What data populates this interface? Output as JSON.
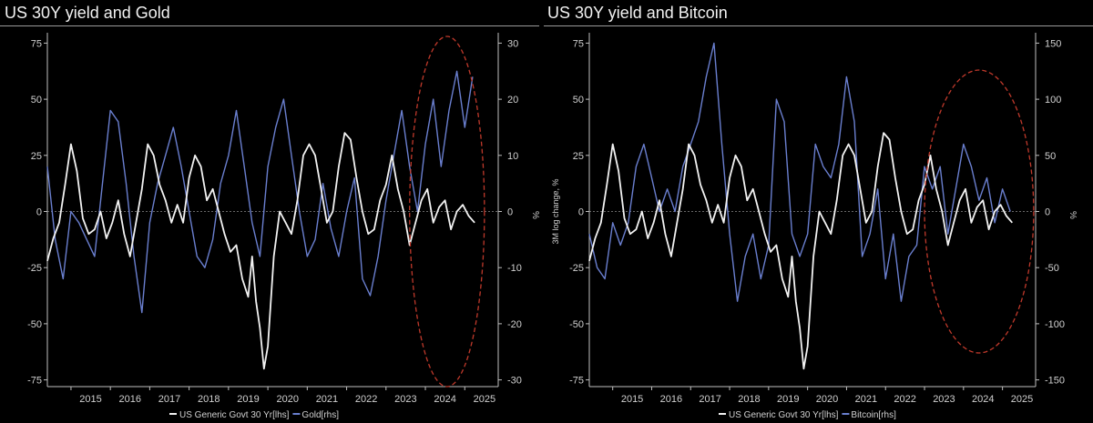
{
  "colors": {
    "background": "#000000",
    "yield_line": "#f2f2f2",
    "asset_line": "#6a7fcf",
    "highlight_ellipse": "#c0392b",
    "axis": "#bfbfbf",
    "zero_line": "#8a8a8a"
  },
  "chart_data": [
    {
      "type": "line",
      "title": "US 30Y yield and Gold",
      "ylabel_left": "",
      "ylabel_right": "%",
      "ylim_left": [
        -78,
        78
      ],
      "ylim_right": [
        -31.2,
        31.2
      ],
      "yticks_left": [
        75,
        50,
        25,
        0,
        -25,
        -50,
        -75
      ],
      "yticks_right": [
        30,
        20,
        10,
        0,
        -10,
        -20,
        -30
      ],
      "xlim": [
        2014.4,
        2025.85
      ],
      "xticks": [
        "2015",
        "2016",
        "2017",
        "2018",
        "2019",
        "2020",
        "2021",
        "2022",
        "2023",
        "2024",
        "2025"
      ],
      "grid": false,
      "zero_line": true,
      "highlight": {
        "x_center": 2024.55,
        "y_center": 0,
        "x_radius": 0.95,
        "y_radius": 78
      },
      "legend": {
        "position": "bottom-center",
        "series_1": "US Generic Govt 30 Yr[lhs]",
        "series_2": "Gold[rhs]"
      },
      "series": [
        {
          "name": "US Generic Govt 30 Yr[lhs]",
          "axis": "left",
          "x": [
            2014.4,
            2014.55,
            2014.7,
            2014.85,
            2015.0,
            2015.15,
            2015.3,
            2015.45,
            2015.6,
            2015.75,
            2015.9,
            2016.05,
            2016.2,
            2016.35,
            2016.5,
            2016.65,
            2016.8,
            2016.95,
            2017.1,
            2017.25,
            2017.4,
            2017.55,
            2017.7,
            2017.85,
            2018.0,
            2018.15,
            2018.3,
            2018.45,
            2018.6,
            2018.75,
            2018.9,
            2019.05,
            2019.2,
            2019.35,
            2019.5,
            2019.6,
            2019.7,
            2019.8,
            2019.9,
            2020.0,
            2020.15,
            2020.3,
            2020.45,
            2020.6,
            2020.75,
            2020.9,
            2021.05,
            2021.2,
            2021.35,
            2021.5,
            2021.65,
            2021.8,
            2021.95,
            2022.1,
            2022.25,
            2022.4,
            2022.55,
            2022.7,
            2022.85,
            2023.0,
            2023.15,
            2023.3,
            2023.45,
            2023.6,
            2023.75,
            2023.9,
            2024.05,
            2024.2,
            2024.35,
            2024.5,
            2024.65,
            2024.8,
            2024.95,
            2025.1,
            2025.25
          ],
          "values": [
            -22,
            -12,
            -5,
            12,
            30,
            18,
            -3,
            -10,
            -8,
            0,
            -12,
            -5,
            5,
            -10,
            -20,
            -5,
            10,
            30,
            25,
            12,
            5,
            -5,
            3,
            -5,
            15,
            25,
            20,
            5,
            10,
            0,
            -10,
            -18,
            -15,
            -30,
            -38,
            -20,
            -40,
            -52,
            -70,
            -60,
            -20,
            0,
            -5,
            -10,
            5,
            25,
            30,
            25,
            10,
            -5,
            0,
            20,
            35,
            32,
            15,
            0,
            -10,
            -8,
            5,
            12,
            25,
            10,
            0,
            -15,
            -5,
            5,
            10,
            -5,
            2,
            5,
            -8,
            0,
            3,
            -2,
            -5
          ]
        },
        {
          "name": "Gold[rhs]",
          "axis": "right",
          "x": [
            2014.4,
            2014.6,
            2014.8,
            2015.0,
            2015.2,
            2015.4,
            2015.6,
            2015.8,
            2016.0,
            2016.2,
            2016.4,
            2016.6,
            2016.8,
            2017.0,
            2017.2,
            2017.4,
            2017.6,
            2017.8,
            2018.0,
            2018.2,
            2018.4,
            2018.6,
            2018.8,
            2019.0,
            2019.2,
            2019.4,
            2019.6,
            2019.8,
            2020.0,
            2020.2,
            2020.4,
            2020.6,
            2020.8,
            2021.0,
            2021.2,
            2021.4,
            2021.6,
            2021.8,
            2022.0,
            2022.2,
            2022.4,
            2022.6,
            2022.8,
            2023.0,
            2023.2,
            2023.4,
            2023.6,
            2023.8,
            2024.0,
            2024.2,
            2024.4,
            2024.6,
            2024.8,
            2025.0,
            2025.2
          ],
          "values": [
            8,
            -5,
            -12,
            0,
            -2,
            -5,
            -8,
            5,
            18,
            16,
            5,
            -8,
            -18,
            -2,
            5,
            10,
            15,
            8,
            0,
            -8,
            -10,
            -5,
            5,
            10,
            18,
            8,
            -2,
            -8,
            8,
            15,
            20,
            10,
            0,
            -8,
            -5,
            5,
            -3,
            -8,
            0,
            6,
            -12,
            -15,
            -8,
            2,
            10,
            18,
            8,
            0,
            12,
            20,
            8,
            18,
            25,
            15,
            24
          ]
        }
      ]
    },
    {
      "type": "line",
      "title": "US 30Y yield and Bitcoin",
      "ylabel_left": "3M log change, %",
      "ylabel_right": "%",
      "ylim_left": [
        -78,
        78
      ],
      "ylim_right": [
        -156,
        156
      ],
      "yticks_left": [
        75,
        50,
        25,
        0,
        -25,
        -50,
        -75
      ],
      "yticks_right": [
        150,
        100,
        50,
        0,
        -50,
        -100,
        -150
      ],
      "xlim": [
        2014.4,
        2025.85
      ],
      "xticks": [
        "2015",
        "2016",
        "2017",
        "2018",
        "2019",
        "2020",
        "2021",
        "2022",
        "2023",
        "2024",
        "2025"
      ],
      "grid": false,
      "zero_line": true,
      "highlight": {
        "x_center": 2024.4,
        "y_center": 0,
        "x_radius": 1.4,
        "y_radius": 63
      },
      "legend": {
        "position": "bottom-center",
        "series_1": "US Generic Govt 30 Yr[lhs]",
        "series_2": "Bitcoin[rhs]"
      },
      "series": [
        {
          "name": "US Generic Govt 30 Yr[lhs]",
          "axis": "left",
          "x": [
            2014.4,
            2014.55,
            2014.7,
            2014.85,
            2015.0,
            2015.15,
            2015.3,
            2015.45,
            2015.6,
            2015.75,
            2015.9,
            2016.05,
            2016.2,
            2016.35,
            2016.5,
            2016.65,
            2016.8,
            2016.95,
            2017.1,
            2017.25,
            2017.4,
            2017.55,
            2017.7,
            2017.85,
            2018.0,
            2018.15,
            2018.3,
            2018.45,
            2018.6,
            2018.75,
            2018.9,
            2019.05,
            2019.2,
            2019.35,
            2019.5,
            2019.6,
            2019.7,
            2019.8,
            2019.9,
            2020.0,
            2020.15,
            2020.3,
            2020.45,
            2020.6,
            2020.75,
            2020.9,
            2021.05,
            2021.2,
            2021.35,
            2021.5,
            2021.65,
            2021.8,
            2021.95,
            2022.1,
            2022.25,
            2022.4,
            2022.55,
            2022.7,
            2022.85,
            2023.0,
            2023.15,
            2023.3,
            2023.45,
            2023.6,
            2023.75,
            2023.9,
            2024.05,
            2024.2,
            2024.35,
            2024.5,
            2024.65,
            2024.8,
            2024.95,
            2025.1,
            2025.25
          ],
          "values": [
            -22,
            -12,
            -5,
            12,
            30,
            18,
            -3,
            -10,
            -8,
            0,
            -12,
            -5,
            5,
            -10,
            -20,
            -5,
            10,
            30,
            25,
            12,
            5,
            -5,
            3,
            -5,
            15,
            25,
            20,
            5,
            10,
            0,
            -10,
            -18,
            -15,
            -30,
            -38,
            -20,
            -40,
            -52,
            -70,
            -60,
            -20,
            0,
            -5,
            -10,
            5,
            25,
            30,
            25,
            10,
            -5,
            0,
            20,
            35,
            32,
            15,
            0,
            -10,
            -8,
            5,
            12,
            25,
            10,
            0,
            -15,
            -5,
            5,
            10,
            -5,
            2,
            5,
            -8,
            0,
            3,
            -2,
            -5
          ]
        },
        {
          "name": "Bitcoin[rhs]",
          "axis": "right",
          "x": [
            2014.4,
            2014.6,
            2014.8,
            2015.0,
            2015.2,
            2015.4,
            2015.6,
            2015.8,
            2016.0,
            2016.2,
            2016.4,
            2016.6,
            2016.8,
            2017.0,
            2017.2,
            2017.4,
            2017.6,
            2017.8,
            2018.0,
            2018.2,
            2018.4,
            2018.6,
            2018.8,
            2019.0,
            2019.2,
            2019.4,
            2019.6,
            2019.8,
            2020.0,
            2020.2,
            2020.4,
            2020.6,
            2020.8,
            2021.0,
            2021.2,
            2021.4,
            2021.6,
            2021.8,
            2022.0,
            2022.2,
            2022.4,
            2022.6,
            2022.8,
            2023.0,
            2023.2,
            2023.4,
            2023.6,
            2023.8,
            2024.0,
            2024.2,
            2024.4,
            2024.6,
            2024.8,
            2025.0,
            2025.2
          ],
          "values": [
            -20,
            -50,
            -60,
            -10,
            -30,
            -10,
            40,
            60,
            30,
            0,
            20,
            0,
            40,
            60,
            80,
            120,
            150,
            60,
            -20,
            -80,
            -40,
            -20,
            -60,
            -30,
            100,
            80,
            -20,
            -40,
            -20,
            60,
            40,
            30,
            60,
            120,
            80,
            -40,
            -20,
            20,
            -60,
            -20,
            -80,
            -40,
            -30,
            40,
            20,
            40,
            -20,
            20,
            60,
            40,
            10,
            30,
            -10,
            20,
            0
          ]
        }
      ]
    }
  ]
}
